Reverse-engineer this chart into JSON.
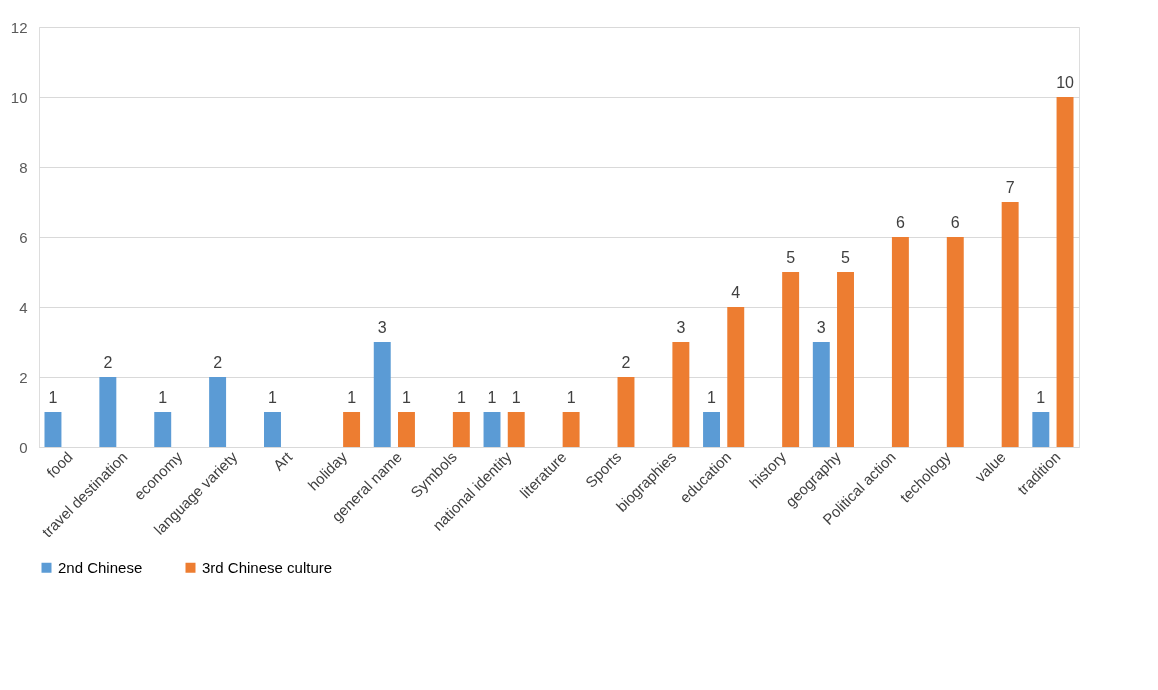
{
  "chart_data": {
    "type": "bar",
    "categories": [
      "food",
      "travel destination",
      "economy",
      "language variety",
      "Art",
      "holiday",
      "general name",
      "Symbols",
      "national identity",
      "literature",
      "Sports",
      "biographies",
      "education",
      "history",
      "geography",
      "Political action",
      "techology",
      "value",
      "tradition"
    ],
    "series": [
      {
        "name": "2nd Chinese",
        "color": "#5b9bd5",
        "values": [
          1,
          2,
          1,
          2,
          1,
          null,
          3,
          null,
          1,
          null,
          null,
          null,
          1,
          null,
          3,
          null,
          null,
          null,
          1
        ]
      },
      {
        "name": "3rd Chinese culture",
        "color": "#ed7d31",
        "values": [
          null,
          null,
          null,
          null,
          null,
          1,
          1,
          1,
          1,
          1,
          2,
          3,
          4,
          5,
          5,
          6,
          6,
          7,
          10
        ]
      }
    ],
    "ylim": [
      0,
      12
    ],
    "yticks": [
      0,
      2,
      4,
      6,
      8,
      10,
      12
    ],
    "grid": "y",
    "legend": "bottom",
    "data_labels": true
  }
}
